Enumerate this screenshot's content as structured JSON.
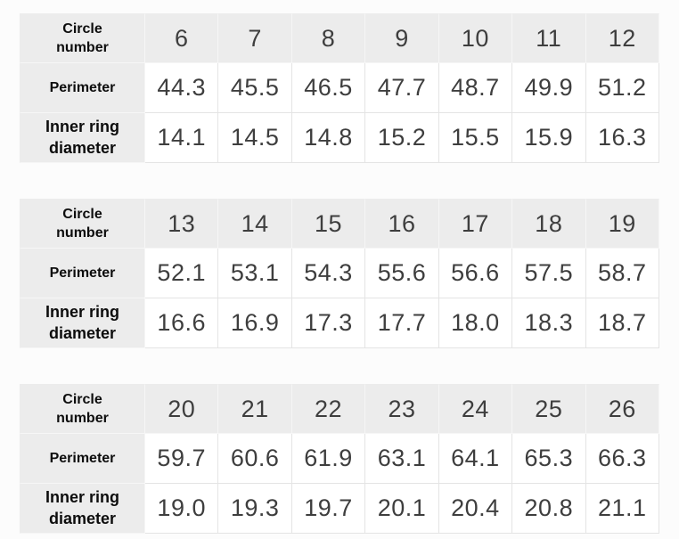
{
  "colors": {
    "cell_gray": "#ececec",
    "cell_white": "#ffffff",
    "border_light": "#f6f6f6",
    "border_gray": "#e4e4e4",
    "number_text": "#3e3e3e",
    "label_text": "#0d0d0d",
    "page_background": "#fcfcfc"
  },
  "labels": {
    "circle_number": "Circle\nnumber",
    "perimeter": "Perimeter",
    "inner_ring_diameter": "Inner ring\ndiameter"
  },
  "chart_data": [
    {
      "type": "table",
      "row_headers": [
        "Circle number",
        "Perimeter",
        "Inner ring diameter"
      ],
      "rows": [
        [
          "6",
          "7",
          "8",
          "9",
          "10",
          "11",
          "12"
        ],
        [
          "44.3",
          "45.5",
          "46.5",
          "47.7",
          "48.7",
          "49.9",
          "51.2"
        ],
        [
          "14.1",
          "14.5",
          "14.8",
          "15.2",
          "15.5",
          "15.9",
          "16.3"
        ]
      ]
    },
    {
      "type": "table",
      "row_headers": [
        "Circle number",
        "Perimeter",
        "Inner ring diameter"
      ],
      "rows": [
        [
          "13",
          "14",
          "15",
          "16",
          "17",
          "18",
          "19"
        ],
        [
          "52.1",
          "53.1",
          "54.3",
          "55.6",
          "56.6",
          "57.5",
          "58.7"
        ],
        [
          "16.6",
          "16.9",
          "17.3",
          "17.7",
          "18.0",
          "18.3",
          "18.7"
        ]
      ]
    },
    {
      "type": "table",
      "row_headers": [
        "Circle number",
        "Perimeter",
        "Inner ring diameter"
      ],
      "rows": [
        [
          "20",
          "21",
          "22",
          "23",
          "24",
          "25",
          "26"
        ],
        [
          "59.7",
          "60.6",
          "61.9",
          "63.1",
          "64.1",
          "65.3",
          "66.3"
        ],
        [
          "19.0",
          "19.3",
          "19.7",
          "20.1",
          "20.4",
          "20.8",
          "21.1"
        ]
      ]
    }
  ]
}
